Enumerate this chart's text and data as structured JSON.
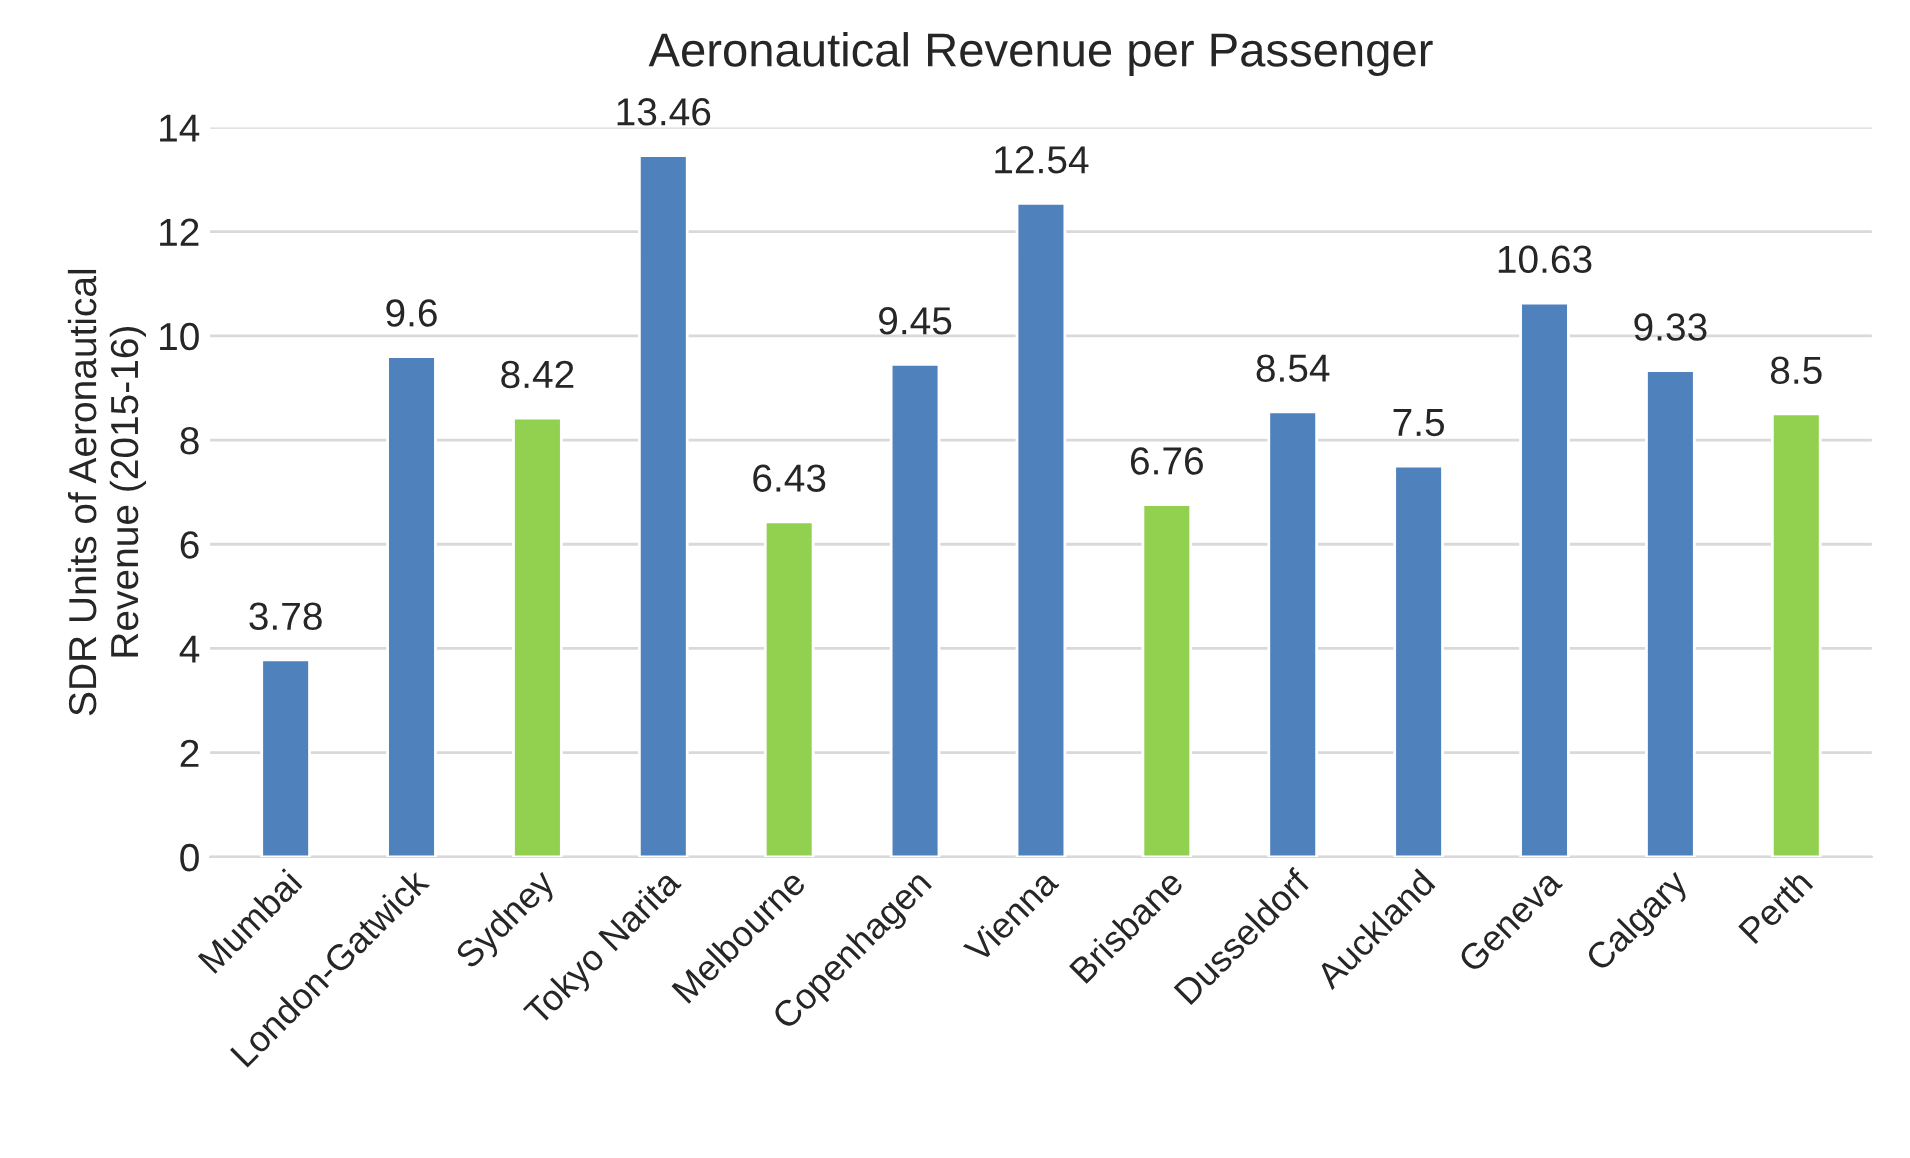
{
  "chart_data": {
    "type": "bar",
    "title": "Aeronautical Revenue per Passenger",
    "ylabel": "SDR Units of Aeronautical\nRevenue (2015-16)",
    "categories": [
      "Mumbai",
      "London-Gatwick",
      "Sydney",
      "Tokyo Narita",
      "Melbourne",
      "Copenhagen",
      "Vienna",
      "Brisbane",
      "Dusseldorf",
      "Auckland",
      "Geneva",
      "Calgary",
      "Perth"
    ],
    "values": [
      3.78,
      9.6,
      8.42,
      13.46,
      6.43,
      9.45,
      12.54,
      6.76,
      8.54,
      7.5,
      10.63,
      9.33,
      8.5
    ],
    "colors": [
      "#4f81bd",
      "#4f81bd",
      "#92d050",
      "#4f81bd",
      "#92d050",
      "#4f81bd",
      "#4f81bd",
      "#92d050",
      "#4f81bd",
      "#4f81bd",
      "#4f81bd",
      "#4f81bd",
      "#92d050"
    ],
    "ylim": [
      0,
      14
    ],
    "yticks": [
      0,
      2,
      4,
      6,
      8,
      10,
      12,
      14
    ],
    "grid": "y",
    "data_labels": true,
    "legend": false
  }
}
